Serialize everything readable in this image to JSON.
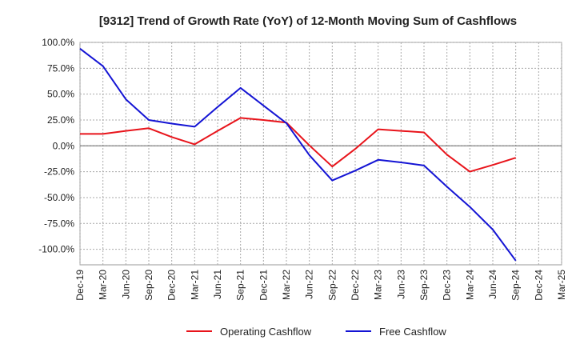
{
  "chart_data": {
    "type": "line",
    "title": "[9312]  Trend of Growth Rate (YoY) of 12-Month Moving Sum of Cashflows",
    "xlabel": "",
    "ylabel": "",
    "categories": [
      "Dec-19",
      "Mar-20",
      "Jun-20",
      "Sep-20",
      "Dec-20",
      "Mar-21",
      "Jun-21",
      "Sep-21",
      "Dec-21",
      "Mar-22",
      "Jun-22",
      "Sep-22",
      "Dec-22",
      "Mar-23",
      "Jun-23",
      "Sep-23",
      "Dec-23",
      "Mar-24",
      "Jun-24",
      "Sep-24",
      "Dec-24",
      "Mar-25"
    ],
    "ylim": [
      -115,
      100
    ],
    "yticks": [
      100,
      75,
      50,
      25,
      0,
      -25,
      -50,
      -75,
      -100
    ],
    "ytick_labels": [
      "100.0%",
      "75.0%",
      "50.0%",
      "25.0%",
      "0.0%",
      "-25.0%",
      "-50.0%",
      "-75.0%",
      "-100.0%"
    ],
    "grid": true,
    "legend_position": "bottom-center",
    "series": [
      {
        "name": "Operating Cashflow",
        "color": "#e8141b",
        "values": [
          11.5,
          11.5,
          14.5,
          17.0,
          8.5,
          1.5,
          14.5,
          27.0,
          25.0,
          22.5,
          0.5,
          -20.0,
          -3.0,
          16.0,
          14.5,
          13.0,
          -8.5,
          -25.0,
          -18.5,
          -11.5,
          null,
          null
        ]
      },
      {
        "name": "Free Cashflow",
        "color": "#1414d4",
        "values": [
          94.0,
          77.0,
          45.0,
          25.0,
          21.5,
          18.5,
          37.5,
          56.0,
          39.0,
          22.0,
          -9.0,
          -33.5,
          -24.0,
          -13.5,
          -16.0,
          -19.0,
          -39.5,
          -59.0,
          -81.0,
          -111.0,
          null,
          null
        ]
      }
    ]
  }
}
